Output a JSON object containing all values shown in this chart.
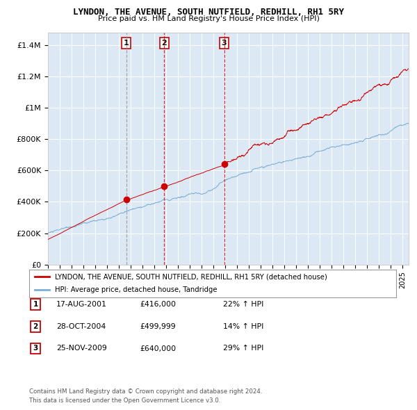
{
  "title": "LYNDON, THE AVENUE, SOUTH NUTFIELD, REDHILL, RH1 5RY",
  "subtitle": "Price paid vs. HM Land Registry's House Price Index (HPI)",
  "legend_label_red": "LYNDON, THE AVENUE, SOUTH NUTFIELD, REDHILL, RH1 5RY (detached house)",
  "legend_label_blue": "HPI: Average price, detached house, Tandridge",
  "footer_line1": "Contains HM Land Registry data © Crown copyright and database right 2024.",
  "footer_line2": "This data is licensed under the Open Government Licence v3.0.",
  "sales": [
    {
      "num": 1,
      "date": "17-AUG-2001",
      "price": 416000,
      "pct": "22%",
      "direction": "↑"
    },
    {
      "num": 2,
      "date": "28-OCT-2004",
      "price": 499999,
      "pct": "14%",
      "direction": "↑"
    },
    {
      "num": 3,
      "date": "25-NOV-2009",
      "price": 640000,
      "pct": "29%",
      "direction": "↑"
    }
  ],
  "sale_dates_decimal": [
    2001.628,
    2004.828,
    2009.903
  ],
  "sale_prices": [
    416000,
    499999,
    640000
  ],
  "xmin": 1995.0,
  "xmax": 2025.5,
  "ymin": 0,
  "ymax": 1480000,
  "yticks": [
    0,
    200000,
    400000,
    600000,
    800000,
    1000000,
    1200000,
    1400000
  ],
  "ytick_labels": [
    "£0",
    "£200K",
    "£400K",
    "£600K",
    "£800K",
    "£1M",
    "£1.2M",
    "£1.4M"
  ],
  "background_color": "#dce9f5",
  "red_color": "#cc0000",
  "blue_color": "#7aaed6",
  "grid_color": "#ffffff",
  "number_box_color": "#cc0000",
  "vline1_color": "#888888",
  "vline23_color": "#cc0000"
}
